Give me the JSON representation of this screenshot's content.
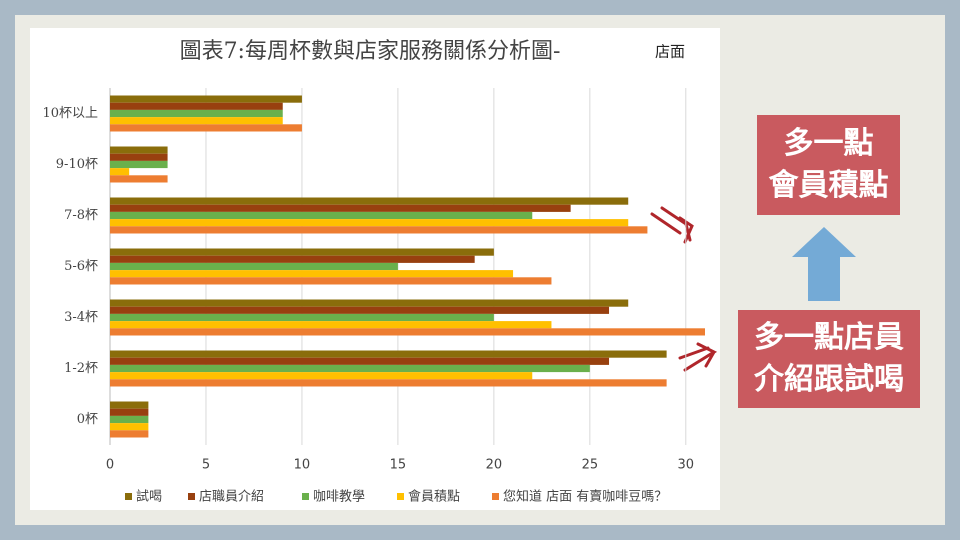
{
  "chart_data": {
    "type": "hbar",
    "title": "圖表7:每周杯數與店家服務關係分析圖-",
    "subtitle": "店面",
    "categories": [
      "10杯以上",
      "9-10杯",
      "7-8杯",
      "5-6杯",
      "3-4杯",
      "1-2杯",
      "0杯"
    ],
    "series": [
      {
        "name": "試喝",
        "color": "#8a6d0b",
        "values": [
          10,
          3,
          27,
          20,
          27,
          29,
          2
        ]
      },
      {
        "name": "店職員介紹",
        "color": "#98400f",
        "values": [
          9,
          3,
          24,
          19,
          26,
          26,
          2
        ]
      },
      {
        "name": "咖啡教學",
        "color": "#6ab04c",
        "values": [
          9,
          3,
          22,
          15,
          20,
          25,
          2
        ]
      },
      {
        "name": "會員積點",
        "color": "#ffc000",
        "values": [
          9,
          1,
          27,
          21,
          23,
          22,
          2
        ]
      },
      {
        "name": "您知道 店面 有賣咖啡豆嗎？",
        "color": "#ed7d31",
        "values": [
          10,
          3,
          28,
          23,
          31,
          29,
          2
        ]
      }
    ],
    "xlim": [
      0,
      31
    ],
    "xticks": [
      0,
      5,
      10,
      15,
      20,
      25,
      30
    ],
    "grid": true,
    "legend": "bottom"
  },
  "annotations": [
    {
      "lines": [
        "多一點",
        "會員積點"
      ]
    },
    {
      "lines": [
        "多一點店員",
        "介紹跟試喝"
      ]
    }
  ]
}
